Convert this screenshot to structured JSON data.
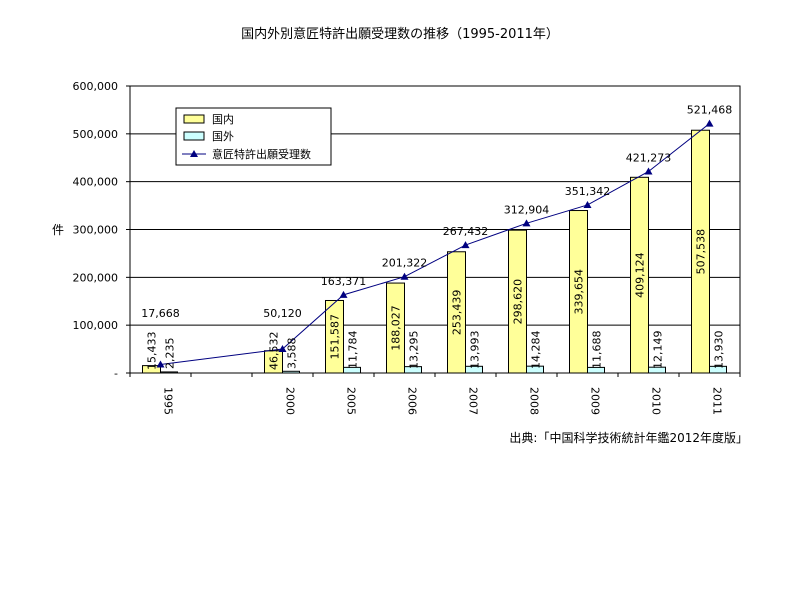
{
  "chart_data": {
    "type": "bar",
    "title": "国内外別意匠特許出願受理数の推移（1995-2011年）",
    "ylabel": "件",
    "xlabel": "",
    "ylim": [
      0,
      600000
    ],
    "yticks": [
      0,
      100000,
      200000,
      300000,
      400000,
      500000,
      600000
    ],
    "ytick_labels": [
      "-",
      "100,000",
      "200,000",
      "300,000",
      "400,000",
      "500,000",
      "600,000"
    ],
    "grid": true,
    "legend_position": "top-left",
    "categories": [
      "1995",
      "",
      "2000",
      "2005",
      "2006",
      "2007",
      "2008",
      "2009",
      "2010",
      "2011"
    ],
    "series": [
      {
        "name": "国内",
        "kind": "bar",
        "color": "#ffff99",
        "values": [
          15433,
          null,
          46532,
          151587,
          188027,
          253439,
          298620,
          339654,
          409124,
          507538
        ],
        "labels": [
          "15,433",
          "",
          "46,532",
          "151,587",
          "188,027",
          "253,439",
          "298,620",
          "339,654",
          "409,124",
          "507,538"
        ]
      },
      {
        "name": "国外",
        "kind": "bar",
        "color": "#ccffff",
        "values": [
          2235,
          null,
          3588,
          11784,
          13295,
          13993,
          14284,
          11688,
          12149,
          13930
        ],
        "labels": [
          "2,235",
          "",
          "3,588",
          "11,784",
          "13,295",
          "13,993",
          "14,284",
          "11,688",
          "12,149",
          "13,930"
        ]
      },
      {
        "name": "意匠特許出願受理数",
        "kind": "line",
        "color": "#000080",
        "values": [
          17668,
          null,
          50120,
          163371,
          201322,
          267432,
          312904,
          351342,
          421273,
          521468
        ],
        "labels": [
          "17,668",
          "",
          "50,120",
          "163,371",
          "201,322",
          "267,432",
          "312,904",
          "351,342",
          "421,273",
          "521,468"
        ]
      }
    ],
    "source": "出典:「中国科学技術統計年鑑2012年度版」"
  }
}
